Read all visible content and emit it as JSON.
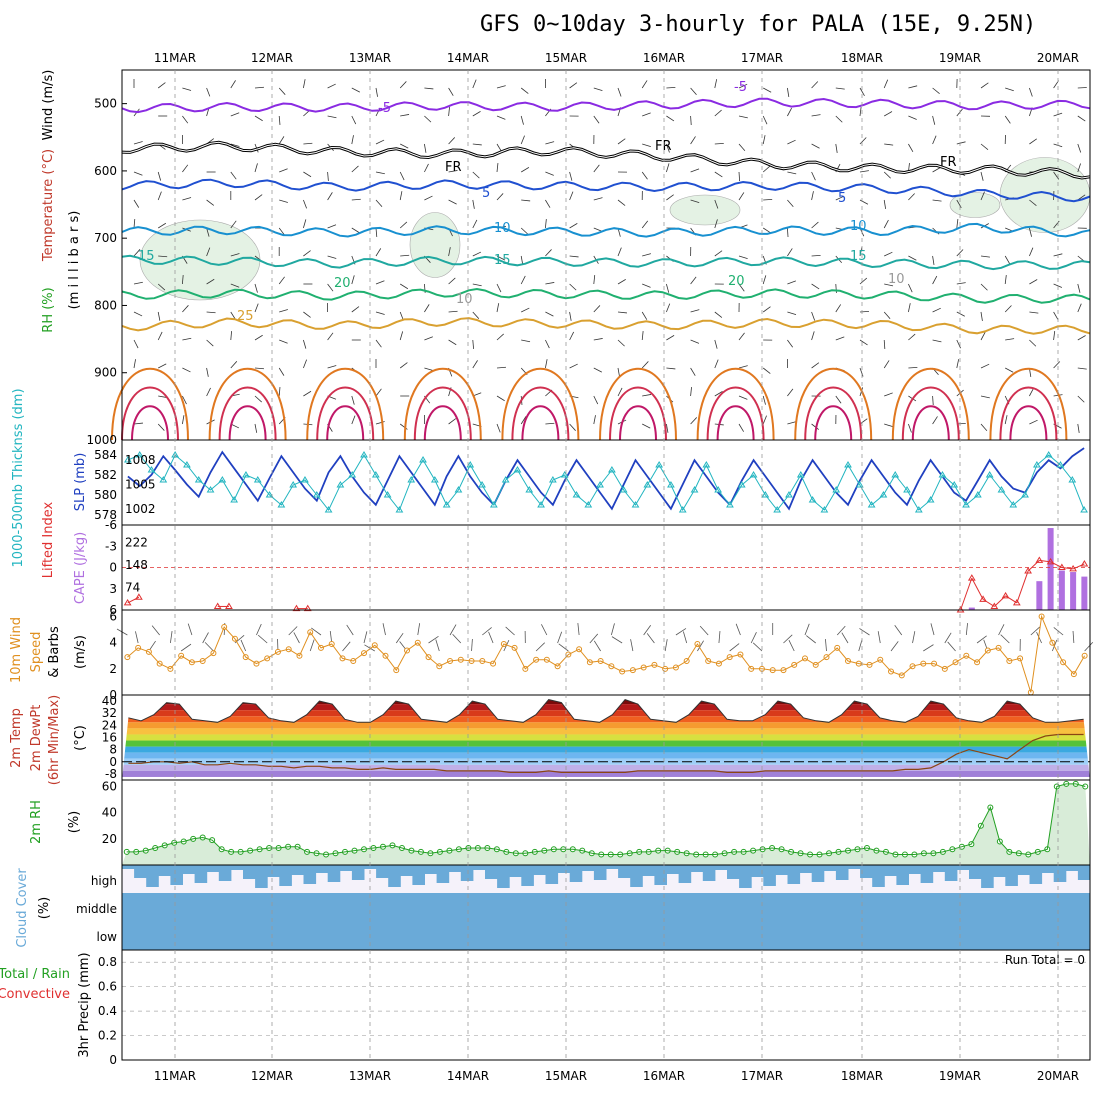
{
  "title": "GFS 0~10day 3-hourly for PALA (15E, 9.25N)",
  "colors": {
    "wind": "#000000",
    "temperature": "#c0392b",
    "rh": "#22a022",
    "thickness": "#22b5c0",
    "slp": "#2040c0",
    "lifted": "#e03030",
    "cape": "#b070e0",
    "wind10": "#e09020",
    "cloud": "#6aaad8",
    "precip_total": "#22a022",
    "precip_conv": "#e03030"
  },
  "chart_data": [
    {
      "type": "line",
      "panel": "upper-air",
      "ylabel_parts": [
        "RH (%)",
        "Temperature (°C)",
        "Wind (m/s)"
      ],
      "ylabel_sub": "(m i l l i b a r s)",
      "x_dates": [
        "11MAR",
        "12MAR",
        "13MAR",
        "14MAR",
        "15MAR",
        "16MAR",
        "17MAR",
        "18MAR",
        "19MAR",
        "20MAR"
      ],
      "yticks": [
        "500",
        "600",
        "700",
        "800",
        "900",
        "1000"
      ],
      "ylim": [
        1000,
        450
      ],
      "isotherms": [
        {
          "value": -5,
          "label": "-5",
          "levels": [
            507,
            505,
            506,
            503,
            505,
            502,
            498,
            500,
            503,
            501
          ]
        },
        {
          "value": 0,
          "label": "FR",
          "levels": [
            567,
            563,
            571,
            575,
            570,
            578,
            590,
            596,
            598,
            605
          ]
        },
        {
          "value": 5,
          "label": "5",
          "levels": [
            622,
            618,
            624,
            620,
            622,
            624,
            622,
            626,
            634,
            640
          ]
        },
        {
          "value": 10,
          "label": "10",
          "levels": [
            690,
            688,
            692,
            688,
            690,
            692,
            688,
            690,
            684,
            694
          ]
        },
        {
          "value": 15,
          "label": "15",
          "levels": [
            732,
            734,
            738,
            733,
            735,
            737,
            734,
            737,
            740,
            740
          ]
        },
        {
          "value": 20,
          "label": "20",
          "levels": [
            785,
            782,
            786,
            781,
            783,
            785,
            782,
            784,
            790,
            790
          ]
        },
        {
          "value": 25,
          "label": "25",
          "levels": [
            832,
            825,
            830,
            824,
            827,
            830,
            826,
            828,
            836,
            836
          ]
        }
      ],
      "contour_labels": [
        "-5",
        "-5",
        "FR",
        "FR",
        "FR",
        "5",
        "5",
        "10",
        "10",
        "15",
        "15",
        "15",
        "20",
        "20",
        "25",
        "10",
        "10"
      ]
    },
    {
      "type": "line",
      "panel": "thickness-slp",
      "ylabel_parts": [
        "1000-500mb Thicknss (dm)",
        "SLP (mb)"
      ],
      "yticks_left": [
        "584",
        "582",
        "580",
        "578"
      ],
      "yticks_right": [
        "1008",
        "1005",
        "1002"
      ],
      "series": [
        {
          "name": "1000-500mb Thicknss (dm)",
          "values": [
            583.5,
            584.0,
            582.5,
            581.5,
            584.0,
            583.0,
            581.5,
            580.5,
            581.5,
            579.5,
            582.0,
            581.5,
            580.0,
            579.0,
            581.0,
            581.5,
            580.0,
            578.5,
            581.0,
            582.0,
            584.0,
            582.0,
            580.0,
            578.5,
            581.5,
            583.5,
            581.5,
            579.0,
            580.5,
            583.0,
            581.0,
            579.0,
            581.5,
            582.5,
            580.5,
            579.0,
            581.5,
            582.0,
            580.0,
            579.0,
            581.0,
            582.5,
            580.5,
            579.0,
            581.0,
            583.0,
            581.0,
            578.5,
            580.5,
            583.0,
            580.5,
            579.0,
            581.0,
            582.0,
            580.0,
            578.5,
            580.0,
            582.0,
            579.5,
            578.5,
            580.5,
            583.0,
            581.0,
            579.0,
            580.0,
            582.0,
            580.5,
            578.5,
            579.5,
            582.0,
            581.0,
            579.0,
            580.0,
            582.0,
            580.5,
            579.0,
            580.0,
            583.0,
            584.0,
            583.0,
            581.5,
            578.5
          ]
        },
        {
          "name": "SLP (mb)",
          "values": [
            1006.0,
            1004.8,
            1006.2,
            1008.5,
            1006.8,
            1005.0,
            1003.5,
            1006.5,
            1009.0,
            1007.0,
            1005.0,
            1003.0,
            1005.8,
            1008.5,
            1006.5,
            1004.5,
            1003.0,
            1006.5,
            1008.5,
            1006.0,
            1004.0,
            1002.5,
            1005.5,
            1008.5,
            1006.5,
            1004.5,
            1002.5,
            1006.0,
            1008.5,
            1006.0,
            1004.0,
            1002.5,
            1005.5,
            1008.0,
            1006.0,
            1004.0,
            1002.5,
            1005.5,
            1008.0,
            1006.0,
            1004.0,
            1002.0,
            1005.0,
            1008.0,
            1006.0,
            1004.0,
            1002.0,
            1005.0,
            1008.0,
            1006.0,
            1004.0,
            1002.5,
            1005.5,
            1008.0,
            1006.0,
            1004.0,
            1002.0,
            1005.5,
            1008.0,
            1006.0,
            1004.0,
            1002.5,
            1005.5,
            1008.0,
            1006.0,
            1004.0,
            1002.5,
            1005.5,
            1008.0,
            1006.0,
            1004.0,
            1003.0,
            1005.5,
            1008.0,
            1006.0,
            1004.5,
            1004.0,
            1006.5,
            1008.0,
            1007.0,
            1008.5,
            1009.5
          ]
        }
      ]
    },
    {
      "type": "bar",
      "panel": "lifted-cape",
      "ylabel_parts": [
        "Lifted Index",
        "CAPE (J/kg)"
      ],
      "yticks_left": [
        "-6",
        "-3",
        "0",
        "3",
        "6"
      ],
      "yticks_right": [
        "222",
        "148",
        "74"
      ],
      "series": [
        {
          "name": "Lifted Index",
          "values": [
            5.0,
            4.2,
            null,
            null,
            null,
            null,
            null,
            null,
            5.5,
            5.5,
            null,
            null,
            null,
            null,
            null,
            5.8,
            5.8,
            null,
            null,
            null,
            null,
            null,
            null,
            null,
            null,
            null,
            null,
            null,
            null,
            null,
            null,
            null,
            null,
            null,
            null,
            null,
            null,
            null,
            null,
            null,
            null,
            null,
            null,
            null,
            null,
            null,
            null,
            null,
            null,
            null,
            null,
            null,
            null,
            null,
            null,
            null,
            null,
            null,
            null,
            null,
            null,
            null,
            null,
            null,
            null,
            null,
            null,
            null,
            null,
            null,
            null,
            null,
            null,
            null,
            6.0,
            1.5,
            4.5,
            5.5,
            4.0,
            5.0,
            0.5,
            -1.0,
            -0.8,
            0.0,
            0.2,
            -0.5
          ]
        },
        {
          "name": "CAPE (J/kg)",
          "values": [
            0,
            0,
            0,
            0,
            0,
            0,
            0,
            0,
            0,
            0,
            0,
            0,
            0,
            0,
            0,
            0,
            0,
            0,
            0,
            0,
            0,
            0,
            0,
            0,
            0,
            0,
            0,
            0,
            0,
            0,
            0,
            0,
            0,
            0,
            0,
            0,
            0,
            0,
            0,
            0,
            0,
            0,
            0,
            0,
            0,
            0,
            0,
            0,
            0,
            0,
            0,
            0,
            0,
            0,
            0,
            0,
            0,
            0,
            0,
            0,
            0,
            0,
            0,
            0,
            0,
            0,
            0,
            0,
            0,
            0,
            0,
            0,
            0,
            0,
            0,
            8,
            0,
            0,
            0,
            0,
            0,
            95,
            270,
            130,
            125,
            110
          ]
        }
      ]
    },
    {
      "type": "line",
      "panel": "wind10",
      "ylabel_parts": [
        "10m Wind",
        "Speed",
        "& Barbs"
      ],
      "yunit": "(m/s)",
      "yticks": [
        "6",
        "4",
        "2",
        "0"
      ],
      "ylim": [
        0,
        6.5
      ],
      "series": [
        {
          "name": "Speed",
          "values": [
            2.9,
            3.6,
            3.3,
            2.4,
            2.0,
            3.0,
            2.5,
            2.6,
            3.2,
            5.2,
            4.3,
            2.9,
            2.4,
            2.8,
            3.3,
            3.5,
            3.0,
            4.8,
            3.6,
            3.9,
            2.8,
            2.6,
            3.2,
            3.8,
            3.0,
            1.9,
            3.4,
            4.0,
            2.9,
            2.2,
            2.6,
            2.7,
            2.6,
            2.6,
            2.4,
            3.9,
            3.6,
            2.0,
            2.7,
            2.7,
            2.2,
            3.1,
            3.5,
            2.5,
            2.6,
            2.2,
            1.8,
            1.9,
            2.1,
            2.3,
            2.0,
            2.1,
            2.6,
            3.9,
            2.6,
            2.4,
            2.9,
            3.1,
            2.0,
            2.0,
            1.9,
            1.9,
            2.3,
            2.8,
            2.3,
            2.9,
            3.6,
            2.6,
            2.4,
            2.3,
            2.7,
            1.8,
            1.5,
            2.2,
            2.4,
            2.4,
            2.0,
            2.5,
            3.0,
            2.5,
            3.4,
            3.6,
            2.6,
            2.8,
            0.2,
            6.0,
            4.0,
            2.5,
            1.6,
            3.0
          ]
        }
      ]
    },
    {
      "type": "area",
      "panel": "temp2m",
      "ylabel_parts": [
        "2m Temp",
        "2m DewPt",
        "(6hr Min/Max)"
      ],
      "yunit": "(°C)",
      "yticks": [
        "40",
        "32",
        "24",
        "16",
        "8",
        "0",
        "-8"
      ],
      "series": [
        {
          "name": "2m Temp",
          "values": [
            29,
            27,
            31,
            39,
            38,
            28,
            27,
            26,
            30,
            39,
            38,
            29,
            27,
            26,
            31,
            40,
            38,
            28,
            26,
            26,
            31,
            40,
            38,
            28,
            27,
            26,
            31,
            40,
            38,
            28,
            27,
            26,
            31,
            41,
            39,
            28,
            27,
            26,
            31,
            41,
            38,
            28,
            27,
            26,
            31,
            40,
            38,
            28,
            27,
            27,
            31,
            40,
            38,
            29,
            27,
            26,
            31,
            40,
            38,
            29,
            27,
            26,
            30,
            40,
            38,
            29,
            27,
            26,
            30,
            40,
            38,
            29,
            26,
            26,
            27,
            28
          ]
        },
        {
          "name": "2m DewPt",
          "values": [
            -1,
            -1,
            0,
            0,
            -1,
            0,
            -2,
            -2,
            -1,
            -2,
            -2,
            -3,
            -3,
            -4,
            -3,
            -3,
            -4,
            -4,
            -5,
            -5,
            -4,
            -5,
            -5,
            -5,
            -5,
            -6,
            -6,
            -6,
            -6,
            -6,
            -7,
            -7,
            -7,
            -6,
            -7,
            -7,
            -7,
            -7,
            -7,
            -7,
            -6,
            -6,
            -6,
            -6,
            -6,
            -6,
            -6,
            -7,
            -7,
            -7,
            -6,
            -6,
            -6,
            -6,
            -6,
            -6,
            -6,
            -6,
            -6,
            -6,
            -6,
            -5,
            -5,
            -4,
            0,
            5,
            8,
            6,
            4,
            2,
            8,
            14,
            17,
            18,
            18,
            18
          ]
        }
      ]
    },
    {
      "type": "area",
      "panel": "rh2m",
      "ylabel_parts": [
        "2m RH"
      ],
      "yunit": "(%)",
      "yticks": [
        "60",
        "40",
        "20"
      ],
      "ylim": [
        0,
        65
      ],
      "series": [
        {
          "name": "2m RH",
          "values": [
            10,
            10,
            11,
            13,
            15,
            17,
            18,
            20,
            21,
            19,
            12,
            10,
            10,
            11,
            12,
            13,
            13,
            14,
            14,
            10,
            9,
            8,
            9,
            10,
            11,
            12,
            13,
            14,
            15,
            13,
            11,
            10,
            9,
            10,
            11,
            12,
            13,
            13,
            13,
            12,
            10,
            9,
            9,
            10,
            11,
            12,
            12,
            12,
            11,
            9,
            8,
            8,
            8,
            9,
            10,
            10,
            11,
            11,
            10,
            9,
            8,
            8,
            8,
            9,
            10,
            10,
            11,
            12,
            13,
            12,
            10,
            9,
            8,
            8,
            9,
            10,
            11,
            12,
            13,
            11,
            10,
            8,
            8,
            8,
            9,
            9,
            10,
            12,
            14,
            16,
            30,
            44,
            18,
            10,
            9,
            8,
            10,
            12,
            60,
            62,
            62,
            60
          ]
        }
      ]
    },
    {
      "type": "bar",
      "panel": "cloud",
      "ylabel_parts": [
        "Cloud Cover"
      ],
      "yunit": "(%)",
      "yticks": [
        "high",
        "middle",
        "low"
      ]
    },
    {
      "type": "bar",
      "panel": "precip",
      "ylabel_parts": [
        "3hr Precip (mm)"
      ],
      "legend": [
        "Total / Rain",
        "Convective"
      ],
      "annotation": "Run Total = 0",
      "yticks": [
        "0.8",
        "0.6",
        "0.4",
        "0.2",
        "0"
      ],
      "ylim": [
        0,
        0.9
      ]
    }
  ]
}
